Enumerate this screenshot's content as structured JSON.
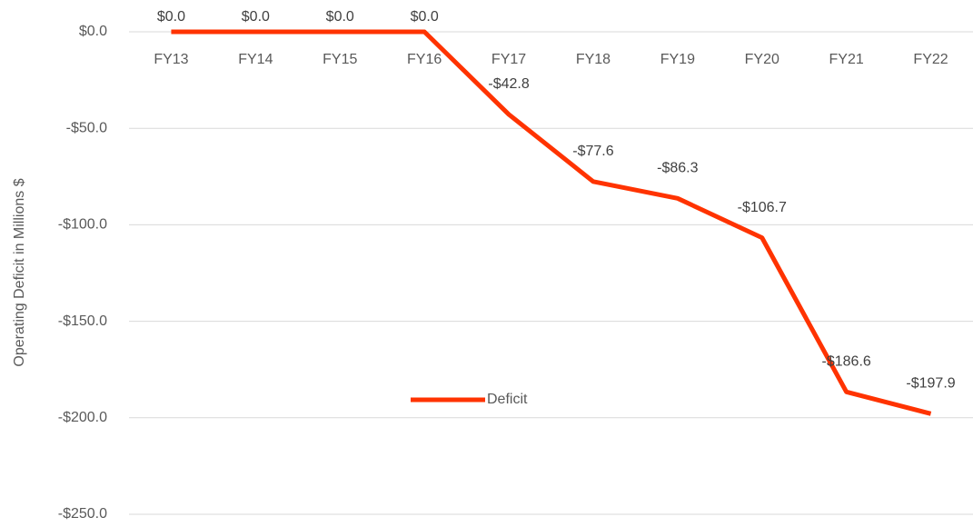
{
  "chart_data": {
    "type": "line",
    "y_label": "Operating Deficit in Millions $",
    "categories": [
      "FY13",
      "FY14",
      "FY15",
      "FY16",
      "FY17",
      "FY18",
      "FY19",
      "FY20",
      "FY21",
      "FY22"
    ],
    "series": [
      {
        "name": "Deficit",
        "color": "#ff3300",
        "values": [
          0,
          0,
          0,
          0,
          -42.8,
          -77.6,
          -86.3,
          -106.7,
          -186.6,
          -197.9
        ],
        "value_labels": [
          "$0.0",
          "$0.0",
          "$0.0",
          "$0.0",
          "-$42.8",
          "-$77.6",
          "-$86.3",
          "-$106.7",
          "-$186.6",
          "-$197.9"
        ]
      }
    ],
    "ylim": [
      -250,
      0
    ],
    "yticks": [
      {
        "value": 0,
        "label": "$0.0"
      },
      {
        "value": -50,
        "label": "-$50.0"
      },
      {
        "value": -100,
        "label": "-$100.0"
      },
      {
        "value": -150,
        "label": "-$150.0"
      },
      {
        "value": -200,
        "label": "-$200.0"
      },
      {
        "value": -250,
        "label": "-$250.0"
      }
    ],
    "grid": true,
    "legend": "center"
  }
}
